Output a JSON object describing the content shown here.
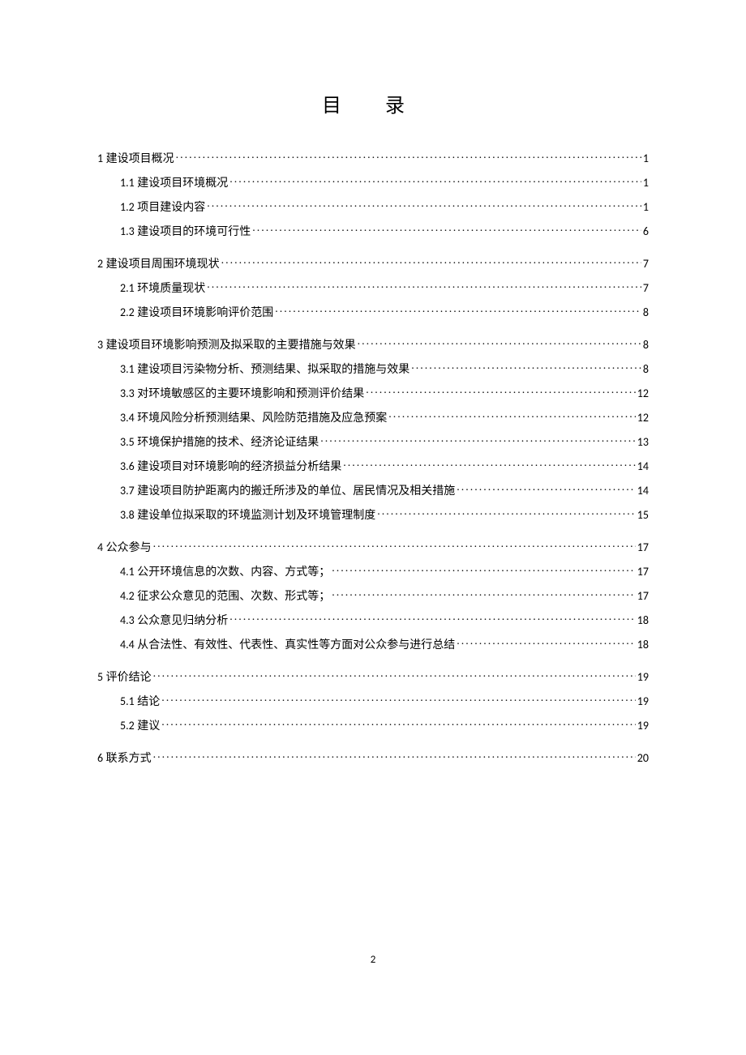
{
  "title": "目 录",
  "page_number": "2",
  "toc": [
    {
      "level": 1,
      "num": "1",
      "label": "建设项目概况",
      "page": "1"
    },
    {
      "level": 2,
      "num": "1.1",
      "label": "建设项目环境概况",
      "page": "1"
    },
    {
      "level": 2,
      "num": "1.2",
      "label": "项目建设内容",
      "page": "1"
    },
    {
      "level": 2,
      "num": "1.3",
      "label": "建设项目的环境可行性",
      "page": "6"
    },
    {
      "level": 1,
      "num": "2",
      "label": "建设项目周围环境现状",
      "page": "7"
    },
    {
      "level": 2,
      "num": "2.1",
      "label": "环境质量现状",
      "page": "7"
    },
    {
      "level": 2,
      "num": "2.2",
      "label": "建设项目环境影响评价范围",
      "page": "8"
    },
    {
      "level": 1,
      "num": "3",
      "label": "建设项目环境影响预测及拟采取的主要措施与效果",
      "page": "8"
    },
    {
      "level": 2,
      "num": "3.1",
      "label": "建设项目污染物分析、预测结果、拟采取的措施与效果",
      "page": "8"
    },
    {
      "level": 2,
      "num": "3.3",
      "label": "对环境敏感区的主要环境影响和预测评价结果",
      "page": "12"
    },
    {
      "level": 2,
      "num": "3.4",
      "label": "环境风险分析预测结果、风险防范措施及应急预案",
      "page": "12"
    },
    {
      "level": 2,
      "num": "3.5",
      "label": "环境保护措施的技术、经济论证结果",
      "page": "13"
    },
    {
      "level": 2,
      "num": "3.6",
      "label": "建设项目对环境影响的经济损益分析结果",
      "page": "14"
    },
    {
      "level": 2,
      "num": "3.7",
      "label": "建设项目防护距离内的搬迁所涉及的单位、居民情况及相关措施",
      "page": "14"
    },
    {
      "level": 2,
      "num": "3.8",
      "label": "建设单位拟采取的环境监测计划及环境管理制度",
      "page": "15"
    },
    {
      "level": 1,
      "num": "4",
      "label": "公众参与",
      "page": "17"
    },
    {
      "level": 2,
      "num": "4.1",
      "label": "公开环境信息的次数、内容、方式等；",
      "page": "17"
    },
    {
      "level": 2,
      "num": "4.2",
      "label": "征求公众意见的范围、次数、形式等；",
      "page": "17"
    },
    {
      "level": 2,
      "num": "4.3",
      "label": "公众意见归纳分析",
      "page": "18"
    },
    {
      "level": 2,
      "num": "4.4",
      "label": "从合法性、有效性、代表性、真实性等方面对公众参与进行总结",
      "page": "18"
    },
    {
      "level": 1,
      "num": "5",
      "label": "评价结论",
      "page": "19"
    },
    {
      "level": 2,
      "num": "5.1",
      "label": "结论",
      "page": "19"
    },
    {
      "level": 2,
      "num": "5.2",
      "label": "建议",
      "page": "19"
    },
    {
      "level": 1,
      "num": "6",
      "label": "联系方式",
      "page": "20"
    }
  ]
}
